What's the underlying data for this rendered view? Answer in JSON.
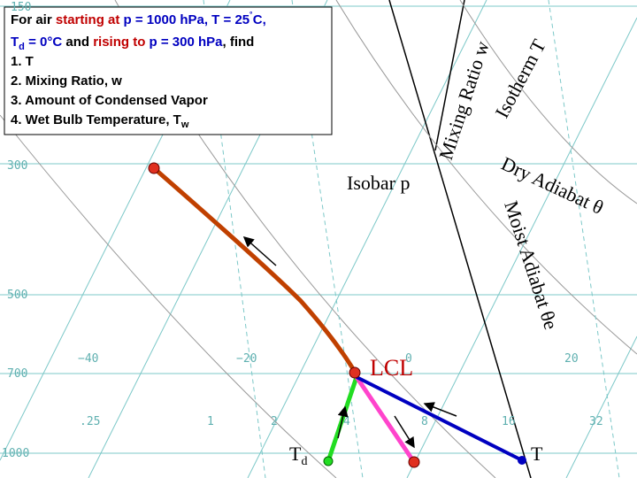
{
  "problem": {
    "lines": [
      [
        "For air ",
        "starting at",
        " p = 1000 hPa, T = 25",
        "˚",
        "C,"
      ],
      [
        "T",
        "d",
        " = 0°C",
        " and ",
        "rising to",
        " p = 300 hPa",
        ", find"
      ],
      [
        "1. T"
      ],
      [
        "2. Mixing Ratio, w"
      ],
      [
        "3. Amount of Condensed Vapor"
      ],
      [
        "4. Wet Bulb Temperature, T",
        "w"
      ]
    ]
  },
  "labels": {
    "mixing_ratio": "Mixing Ratio  w",
    "isotherm": "Isotherm  T",
    "isobar": "Isobar  p",
    "dry_adiabat": "Dry Adiabat θ",
    "moist_adiabat": "Moist Adiabat θe",
    "lcl": "LCL",
    "td": "T",
    "td_sub": "d",
    "t": "T"
  },
  "pressure_labels": [
    "150",
    "300",
    "500",
    "700",
    "1000"
  ],
  "temperature_labels": [
    "−40",
    "−20",
    "0",
    "20"
  ],
  "mixing_ratio_labels": [
    ".25",
    "1",
    "2",
    "4",
    "8",
    "16",
    "32"
  ]
}
